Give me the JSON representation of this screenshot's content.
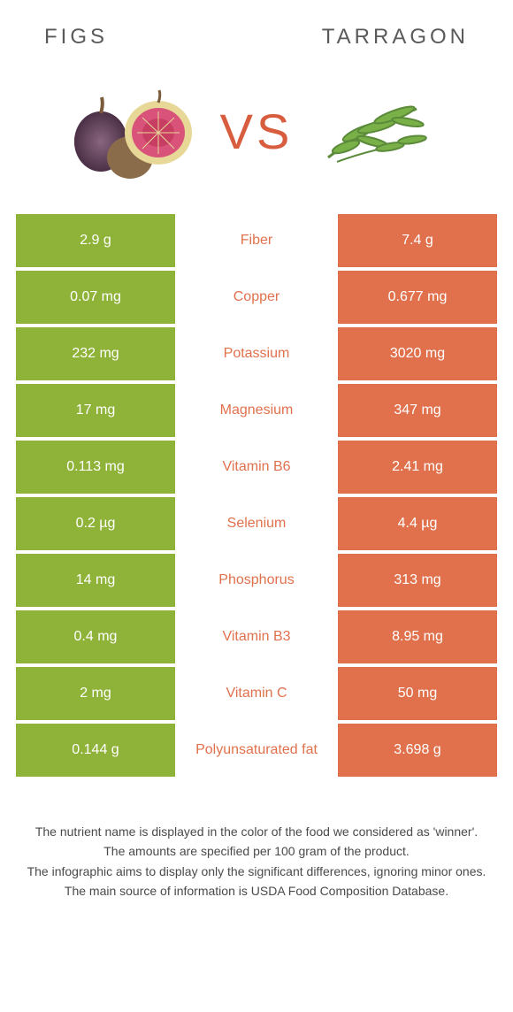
{
  "colors": {
    "left_bg": "#8fb239",
    "right_bg": "#e0714c",
    "accent": "#d85c3e",
    "mid_text_left_win": "#8fb239",
    "mid_text_right_win": "#e0714c"
  },
  "header": {
    "left": "FIGS",
    "right": "TARRAGON"
  },
  "vs_label": "VS",
  "rows": [
    {
      "left": "2.9 g",
      "label": "Fiber",
      "right": "7.4 g",
      "winner": "right"
    },
    {
      "left": "0.07 mg",
      "label": "Copper",
      "right": "0.677 mg",
      "winner": "right"
    },
    {
      "left": "232 mg",
      "label": "Potassium",
      "right": "3020 mg",
      "winner": "right"
    },
    {
      "left": "17 mg",
      "label": "Magnesium",
      "right": "347 mg",
      "winner": "right"
    },
    {
      "left": "0.113 mg",
      "label": "Vitamin B6",
      "right": "2.41 mg",
      "winner": "right"
    },
    {
      "left": "0.2 µg",
      "label": "Selenium",
      "right": "4.4 µg",
      "winner": "right"
    },
    {
      "left": "14 mg",
      "label": "Phosphorus",
      "right": "313 mg",
      "winner": "right"
    },
    {
      "left": "0.4 mg",
      "label": "Vitamin B3",
      "right": "8.95 mg",
      "winner": "right"
    },
    {
      "left": "2 mg",
      "label": "Vitamin C",
      "right": "50 mg",
      "winner": "right"
    },
    {
      "left": "0.144 g",
      "label": "Polyunsaturated fat",
      "right": "3.698 g",
      "winner": "right"
    }
  ],
  "footer": {
    "line1": "The nutrient name is displayed in the color of the food we considered as 'winner'.",
    "line2": "The amounts are specified per 100 gram of the product.",
    "line3": "The infographic aims to display only the significant differences, ignoring minor ones.",
    "line4": "The main source of information is USDA Food Composition Database."
  }
}
